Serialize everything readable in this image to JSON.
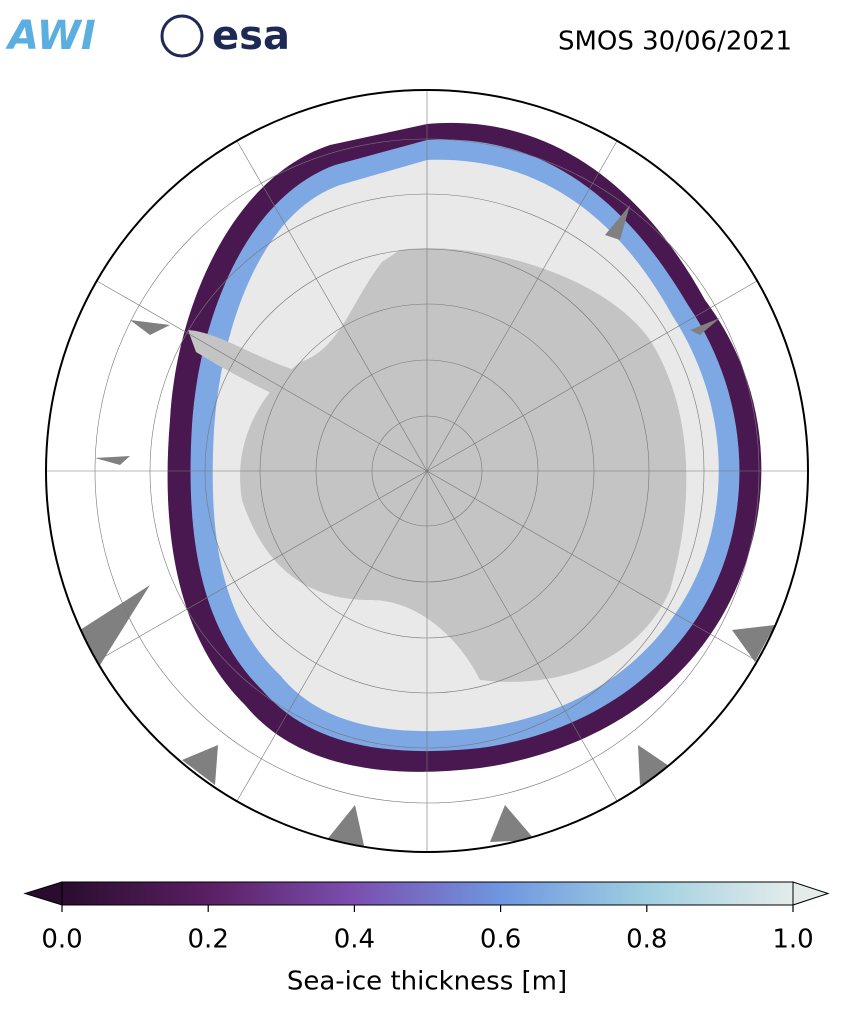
{
  "header": {
    "logos": [
      "AWI",
      "esa"
    ],
    "title": "SMOS 30/06/2021"
  },
  "chart_data": {
    "type": "colorbar",
    "label": "Sea-ice thickness [m]",
    "xlim": [
      0,
      1
    ],
    "xticks": [
      {
        "value": 0,
        "label": "0.0"
      },
      0.2,
      0.4,
      0.6,
      0.8,
      {
        "value": 1,
        "label": "1.0"
      }
    ],
    "colors": [
      "#2a0d2e",
      "#5a1f63",
      "#7b4fb0",
      "#6f96e0",
      "#9fcfe0",
      "#e4ecea"
    ]
  }
}
